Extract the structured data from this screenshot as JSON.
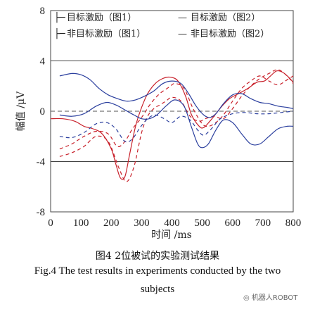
{
  "chart_data": {
    "type": "line",
    "xlabel": "时间 /ms",
    "ylabel": "幅值 /μV",
    "xlim": [
      0,
      800
    ],
    "ylim": [
      -8,
      8
    ],
    "x_ticks": [
      "0",
      "100",
      "200",
      "300",
      "400",
      "500",
      "600",
      "700",
      "800"
    ],
    "y_ticks": [
      "8",
      "4",
      "0",
      "-4",
      "-8"
    ],
    "series": [
      {
        "name": "目标激励（图1）",
        "color": "#c8202a",
        "style": "dashed",
        "points": [
          [
            30,
            -3.6
          ],
          [
            70,
            -3.3
          ],
          [
            110,
            -2.8
          ],
          [
            150,
            -2.0
          ],
          [
            190,
            -2.4
          ],
          [
            225,
            -4.5
          ],
          [
            250,
            -5.6
          ],
          [
            275,
            -4.4
          ],
          [
            300,
            -1.7
          ],
          [
            320,
            -0.4
          ],
          [
            340,
            0.2
          ],
          [
            360,
            0.5
          ],
          [
            380,
            0.8
          ],
          [
            400,
            1.1
          ],
          [
            430,
            0.8
          ],
          [
            460,
            -0.4
          ],
          [
            490,
            -0.8
          ],
          [
            510,
            -0.6
          ],
          [
            540,
            -0.4
          ],
          [
            570,
            -0.6
          ],
          [
            600,
            0.2
          ],
          [
            630,
            1.2
          ],
          [
            660,
            2.0
          ],
          [
            690,
            2.6
          ],
          [
            720,
            3.0
          ],
          [
            750,
            3.3
          ],
          [
            780,
            2.8
          ],
          [
            800,
            2.2
          ]
        ]
      },
      {
        "name": "非目标激励（图1）",
        "color": "#c8202a",
        "style": "dashed",
        "points": [
          [
            30,
            -3.0
          ],
          [
            70,
            -2.6
          ],
          [
            110,
            -2.0
          ],
          [
            150,
            -1.6
          ],
          [
            190,
            -1.8
          ],
          [
            220,
            -2.8
          ],
          [
            245,
            -2.4
          ],
          [
            270,
            -1.4
          ],
          [
            300,
            -0.5
          ],
          [
            330,
            0.6
          ],
          [
            360,
            1.4
          ],
          [
            390,
            1.9
          ],
          [
            410,
            2.2
          ],
          [
            440,
            1.8
          ],
          [
            470,
            0.2
          ],
          [
            500,
            -1.0
          ],
          [
            520,
            -1.2
          ],
          [
            545,
            -0.9
          ],
          [
            570,
            -0.3
          ],
          [
            600,
            0.8
          ],
          [
            630,
            1.8
          ],
          [
            660,
            2.4
          ],
          [
            690,
            2.8
          ],
          [
            720,
            2.4
          ],
          [
            750,
            2.1
          ],
          [
            780,
            2.5
          ],
          [
            800,
            2.8
          ]
        ]
      },
      {
        "name": "目标激励（图2）",
        "color": "#c8202a",
        "style": "solid",
        "points": [
          [
            0,
            -0.6
          ],
          [
            40,
            -0.6
          ],
          [
            80,
            -0.8
          ],
          [
            110,
            -1.2
          ],
          [
            140,
            -1.4
          ],
          [
            170,
            -1.8
          ],
          [
            200,
            -3.0
          ],
          [
            215,
            -4.2
          ],
          [
            230,
            -5.3
          ],
          [
            245,
            -5.2
          ],
          [
            260,
            -3.5
          ],
          [
            280,
            -1.2
          ],
          [
            300,
            0.3
          ],
          [
            320,
            1.4
          ],
          [
            345,
            2.2
          ],
          [
            370,
            2.6
          ],
          [
            395,
            2.7
          ],
          [
            420,
            2.4
          ],
          [
            445,
            1.2
          ],
          [
            465,
            -0.3
          ],
          [
            490,
            -1.2
          ],
          [
            505,
            -1.3
          ],
          [
            525,
            -0.8
          ],
          [
            545,
            -0.2
          ],
          [
            565,
            0.4
          ],
          [
            590,
            1.0
          ],
          [
            620,
            1.4
          ],
          [
            650,
            1.8
          ],
          [
            680,
            2.3
          ],
          [
            705,
            2.4
          ],
          [
            725,
            2.8
          ],
          [
            745,
            3.2
          ],
          [
            765,
            3.1
          ],
          [
            785,
            2.7
          ],
          [
            800,
            2.3
          ]
        ]
      },
      {
        "name": "非目标激励（图2）",
        "color": "#2b3f9e",
        "style": "solid",
        "points": [
          [
            30,
            2.8
          ],
          [
            70,
            3.0
          ],
          [
            100,
            2.9
          ],
          [
            130,
            2.5
          ],
          [
            160,
            1.8
          ],
          [
            190,
            1.3
          ],
          [
            220,
            1.0
          ],
          [
            250,
            0.8
          ],
          [
            280,
            0.9
          ],
          [
            310,
            1.2
          ],
          [
            340,
            1.6
          ],
          [
            370,
            2.2
          ],
          [
            400,
            2.4
          ],
          [
            430,
            2.2
          ],
          [
            455,
            1.4
          ],
          [
            480,
            0.4
          ],
          [
            505,
            -0.3
          ],
          [
            525,
            -0.5
          ],
          [
            545,
            -0.2
          ],
          [
            570,
            0.6
          ],
          [
            600,
            1.3
          ],
          [
            630,
            1.4
          ],
          [
            660,
            1.0
          ],
          [
            690,
            0.7
          ],
          [
            720,
            0.6
          ],
          [
            750,
            0.4
          ],
          [
            780,
            0.3
          ],
          [
            800,
            0.2
          ]
        ]
      },
      {
        "name": "",
        "color": "#2b3f9e",
        "style": "solid",
        "points": [
          [
            30,
            -0.3
          ],
          [
            70,
            -0.4
          ],
          [
            110,
            -0.2
          ],
          [
            150,
            0.4
          ],
          [
            185,
            0.7
          ],
          [
            215,
            0.5
          ],
          [
            245,
            0.1
          ],
          [
            275,
            -0.3
          ],
          [
            300,
            -0.6
          ],
          [
            325,
            -0.6
          ],
          [
            350,
            -0.3
          ],
          [
            380,
            0.4
          ],
          [
            410,
            0.9
          ],
          [
            440,
            0.4
          ],
          [
            465,
            -1.3
          ],
          [
            485,
            -2.6
          ],
          [
            500,
            -2.9
          ],
          [
            520,
            -2.6
          ],
          [
            545,
            -1.5
          ],
          [
            570,
            -0.7
          ],
          [
            600,
            -0.9
          ],
          [
            630,
            -1.8
          ],
          [
            660,
            -2.6
          ],
          [
            690,
            -2.6
          ],
          [
            720,
            -2.0
          ],
          [
            750,
            -1.4
          ],
          [
            780,
            -1.2
          ],
          [
            800,
            -1.2
          ]
        ]
      },
      {
        "name": "",
        "color": "#2b3f9e",
        "style": "dashed",
        "points": [
          [
            30,
            -2.0
          ],
          [
            70,
            -2.1
          ],
          [
            110,
            -1.7
          ],
          [
            150,
            -1.0
          ],
          [
            185,
            -0.9
          ],
          [
            215,
            -1.4
          ],
          [
            245,
            -2.4
          ],
          [
            270,
            -2.2
          ],
          [
            295,
            -1.3
          ],
          [
            320,
            -0.6
          ],
          [
            345,
            -0.3
          ],
          [
            375,
            -0.6
          ],
          [
            400,
            -0.9
          ],
          [
            430,
            -0.4
          ],
          [
            460,
            -0.7
          ],
          [
            485,
            -1.5
          ],
          [
            505,
            -1.9
          ],
          [
            530,
            -1.4
          ],
          [
            560,
            -0.6
          ],
          [
            600,
            -0.2
          ],
          [
            640,
            -0.1
          ],
          [
            680,
            -0.2
          ],
          [
            720,
            -0.2
          ],
          [
            760,
            -0.1
          ],
          [
            800,
            0.0
          ]
        ]
      }
    ],
    "reference_lines": [
      {
        "y": 4,
        "color": "#444",
        "style": "solid"
      },
      {
        "y": -4,
        "color": "#444",
        "style": "solid"
      },
      {
        "y": 0,
        "color": "#555",
        "style": "dashed"
      }
    ],
    "legend": {
      "placement": "top",
      "entries": [
        {
          "marker": "├─",
          "label": "目标激励（图1）"
        },
        {
          "marker": "├─",
          "label": "非目标激励（图1）"
        },
        {
          "marker": "—",
          "label": "目标激励（图2）"
        },
        {
          "marker": "—",
          "label": "非目标激励（图2）"
        }
      ]
    },
    "grid": false
  },
  "caption": {
    "cn": "图4  2位被试的实验测试结果",
    "en_line1": "Fig.4    The test results in experiments conducted by the two",
    "en_line2": "subjects"
  },
  "watermark": "机器人ROBOT"
}
